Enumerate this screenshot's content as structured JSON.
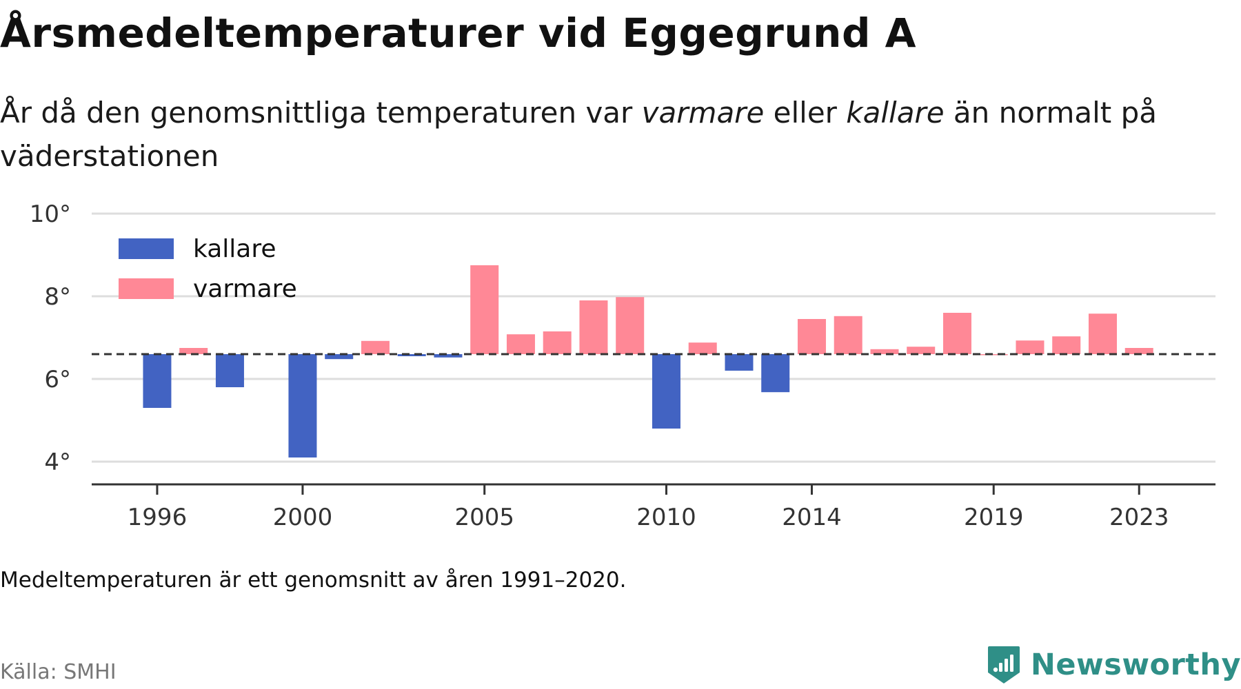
{
  "title": "Årsmedeltemperaturer vid Eggegrund A",
  "subtitle": {
    "part1": "År då den genomsnittliga temperaturen var ",
    "warm_word": "varmare",
    "part2": " eller ",
    "cold_word": "kallare",
    "part3": " än normalt på väderstationen"
  },
  "note": "Medeltemperaturen är ett genomsnitt av åren 1991–2020.",
  "source": "Källa: SMHI",
  "logo_text": "Newsworthy",
  "logo_icon": "bar-chart-shield-icon",
  "colors": {
    "kallare": "#4263c2",
    "varmare": "#ff8896",
    "grid": "#dddddd",
    "reference": "#333333",
    "logo": "#2f8f87"
  },
  "chart_data": {
    "type": "bar",
    "reference_line": 6.6,
    "ylim": [
      3.5,
      10
    ],
    "yticks": [
      4,
      6,
      8,
      10
    ],
    "ytick_labels": [
      "4°",
      "6°",
      "8°",
      "10°"
    ],
    "xticks": [
      1996,
      2000,
      2005,
      2010,
      2014,
      2019,
      2023
    ],
    "xtick_labels": [
      "1996",
      "2000",
      "2005",
      "2010",
      "2014",
      "2019",
      "2023"
    ],
    "xlim": [
      1994.2,
      2025.1
    ],
    "legend": [
      {
        "key": "kallare",
        "label": "kallare"
      },
      {
        "key": "varmare",
        "label": "varmare"
      }
    ],
    "legend_position": "top-left",
    "grid": true,
    "years": [
      1996,
      1997,
      1998,
      2000,
      2001,
      2002,
      2003,
      2004,
      2005,
      2006,
      2007,
      2008,
      2009,
      2010,
      2011,
      2012,
      2013,
      2014,
      2015,
      2016,
      2017,
      2018,
      2019,
      2020,
      2021,
      2022,
      2023
    ],
    "values": [
      5.3,
      6.75,
      5.8,
      4.1,
      6.48,
      6.92,
      6.55,
      6.52,
      8.75,
      7.08,
      7.15,
      7.9,
      7.98,
      4.8,
      6.88,
      6.2,
      5.68,
      7.45,
      7.52,
      6.72,
      6.78,
      7.6,
      6.6,
      6.93,
      7.03,
      7.58,
      6.75
    ]
  }
}
